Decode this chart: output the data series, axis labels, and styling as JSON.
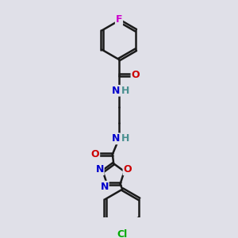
{
  "bg_color": "#e0e0e8",
  "bond_color": "#1a1a1a",
  "bond_width": 1.8,
  "atom_colors": {
    "C": "#1a1a1a",
    "N": "#0000cc",
    "O": "#cc0000",
    "F": "#cc00cc",
    "Cl": "#00aa00",
    "H": "#4a9090"
  },
  "font_size": 9,
  "fig_width": 3.0,
  "fig_height": 3.0
}
